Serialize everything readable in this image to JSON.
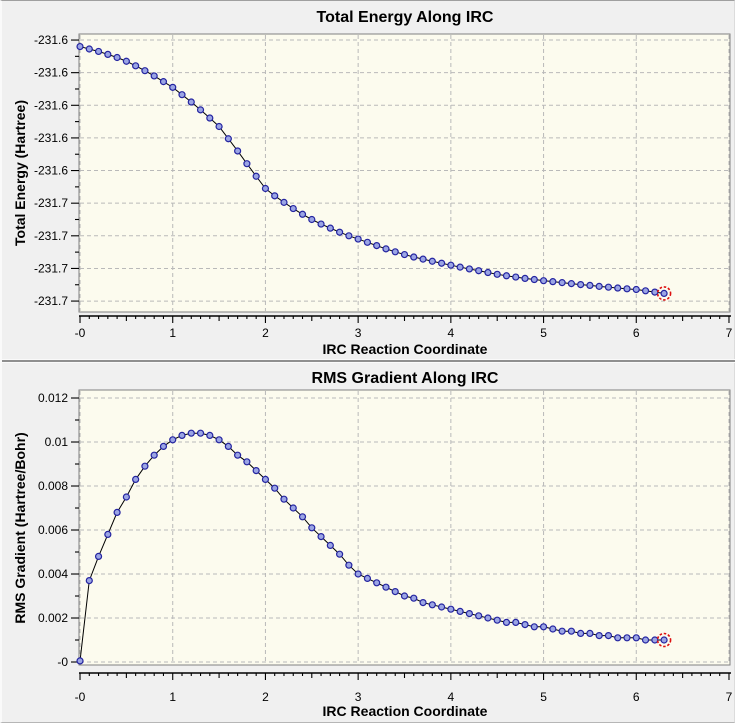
{
  "style": {
    "page_bg": "#f0f0f0",
    "plot_bg": "#fcfbee",
    "frame": "#818181",
    "grid": "#b9b9b9",
    "axis": "#000000",
    "line": "#000000",
    "marker_fill": "#9ba5e4",
    "marker_stroke": "#2424a0",
    "selection_ring": "#dd1111",
    "text": "#000000",
    "divider": "#8f8f8f"
  },
  "chart_data": [
    {
      "type": "line",
      "title": "Total Energy Along IRC",
      "xlabel": "IRC Reaction Coordinate",
      "ylabel": "Total Energy (Hartree)",
      "grid": true,
      "markers": true,
      "selected_index": 63,
      "x_axis": {
        "min": -0.011,
        "max": 7.011,
        "tick_values": [
          0,
          1,
          2,
          3,
          4,
          5,
          6,
          7
        ],
        "tick_labels": [
          "-0",
          "1",
          "2",
          "3",
          "4",
          "5",
          "6",
          "7"
        ],
        "minor_step": 0.1
      },
      "y_axis": {
        "min": -231.7267,
        "max": -231.5563,
        "tick_values": [
          -231.56,
          -231.58,
          -231.6,
          -231.62,
          -231.64,
          -231.66,
          -231.68,
          -231.7,
          -231.72
        ],
        "tick_labels": [
          "-231.6",
          "-231.6",
          "-231.6",
          "-231.6",
          "-231.6",
          "-231.7",
          "-231.7",
          "-231.7",
          "-231.7"
        ]
      },
      "x": [
        0,
        0.1,
        0.2,
        0.3,
        0.4,
        0.5,
        0.6,
        0.7,
        0.8,
        0.9,
        1.0,
        1.1,
        1.2,
        1.3,
        1.4,
        1.5,
        1.6,
        1.7,
        1.8,
        1.9,
        2.0,
        2.1,
        2.2,
        2.3,
        2.4,
        2.5,
        2.6,
        2.7,
        2.8,
        2.9,
        3.0,
        3.1,
        3.2,
        3.3,
        3.4,
        3.5,
        3.6,
        3.7,
        3.8,
        3.9,
        4.0,
        4.1,
        4.2,
        4.3,
        4.4,
        4.5,
        4.6,
        4.7,
        4.8,
        4.9,
        5.0,
        5.1,
        5.2,
        5.3,
        5.4,
        5.5,
        5.6,
        5.7,
        5.8,
        5.9,
        6.0,
        6.1,
        6.2,
        6.3
      ],
      "y": [
        -231.564,
        -231.5655,
        -231.567,
        -231.5688,
        -231.5707,
        -231.573,
        -231.5758,
        -231.5788,
        -231.582,
        -231.5855,
        -231.589,
        -231.5935,
        -231.598,
        -231.6028,
        -231.6078,
        -231.613,
        -231.6205,
        -231.628,
        -231.6358,
        -231.6435,
        -231.651,
        -231.6555,
        -231.6595,
        -231.6633,
        -231.6668,
        -231.67,
        -231.6728,
        -231.6753,
        -231.6778,
        -231.68,
        -231.682,
        -231.684,
        -231.686,
        -231.688,
        -231.6898,
        -231.6915,
        -231.693,
        -231.6943,
        -231.6956,
        -231.6968,
        -231.698,
        -231.6992,
        -231.7003,
        -231.7014,
        -231.7025,
        -231.7036,
        -231.7045,
        -231.7053,
        -231.7061,
        -231.7068,
        -231.7075,
        -231.7081,
        -231.7087,
        -231.7093,
        -231.7099,
        -231.7104,
        -231.711,
        -231.7115,
        -231.712,
        -231.7125,
        -231.7129,
        -231.7137,
        -231.7145,
        -231.7153
      ]
    },
    {
      "type": "line",
      "title": "RMS Gradient Along IRC",
      "xlabel": "IRC Reaction Coordinate",
      "ylabel": "RMS Gradient (Hartree/Bohr)",
      "grid": true,
      "markers": true,
      "selected_index": 63,
      "x_axis": {
        "min": -0.011,
        "max": 7.011,
        "tick_values": [
          0,
          1,
          2,
          3,
          4,
          5,
          6,
          7
        ],
        "tick_labels": [
          "-0",
          "1",
          "2",
          "3",
          "4",
          "5",
          "6",
          "7"
        ],
        "minor_step": 0.1
      },
      "y_axis": {
        "min": -0.000136,
        "max": 0.012364,
        "tick_values": [
          0.012,
          0.01,
          0.008,
          0.006,
          0.004,
          0.002,
          0
        ],
        "tick_labels": [
          "0.012",
          "0.01",
          "0.008",
          "0.006",
          "0.004",
          "0.002",
          "-0"
        ]
      },
      "x": [
        0,
        0.1,
        0.2,
        0.3,
        0.4,
        0.5,
        0.6,
        0.7,
        0.8,
        0.9,
        1.0,
        1.1,
        1.2,
        1.3,
        1.4,
        1.5,
        1.6,
        1.7,
        1.8,
        1.9,
        2.0,
        2.1,
        2.2,
        2.3,
        2.4,
        2.5,
        2.6,
        2.7,
        2.8,
        2.9,
        3.0,
        3.1,
        3.2,
        3.3,
        3.4,
        3.5,
        3.6,
        3.7,
        3.8,
        3.9,
        4.0,
        4.1,
        4.2,
        4.3,
        4.4,
        4.5,
        4.6,
        4.7,
        4.8,
        4.9,
        5.0,
        5.1,
        5.2,
        5.3,
        5.4,
        5.5,
        5.6,
        5.7,
        5.8,
        5.9,
        6.0,
        6.1,
        6.2,
        6.3
      ],
      "y": [
        5e-05,
        0.0037,
        0.0048,
        0.0058,
        0.0068,
        0.0075,
        0.0083,
        0.0089,
        0.0094,
        0.0098,
        0.0101,
        0.0103,
        0.0104,
        0.0104,
        0.0103,
        0.0101,
        0.0098,
        0.0094,
        0.0091,
        0.0087,
        0.0083,
        0.0079,
        0.0074,
        0.007,
        0.0066,
        0.0061,
        0.0057,
        0.0053,
        0.0049,
        0.0044,
        0.004,
        0.0038,
        0.0036,
        0.0034,
        0.0032,
        0.003,
        0.0029,
        0.0027,
        0.0026,
        0.0025,
        0.0024,
        0.0023,
        0.0022,
        0.0021,
        0.002,
        0.0019,
        0.0018,
        0.0018,
        0.0017,
        0.0016,
        0.0016,
        0.0015,
        0.0014,
        0.0014,
        0.0013,
        0.0013,
        0.0012,
        0.0012,
        0.0011,
        0.0011,
        0.0011,
        0.001,
        0.001,
        0.001
      ]
    }
  ]
}
